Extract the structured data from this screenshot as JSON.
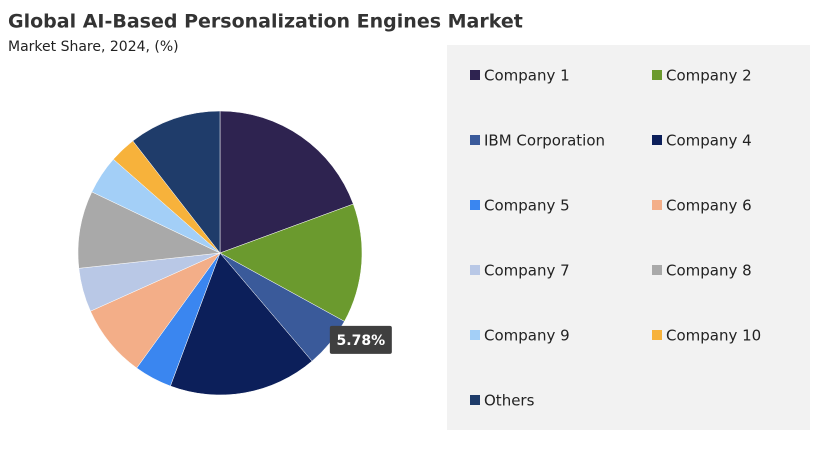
{
  "chart_data": {
    "type": "pie",
    "title": "Global AI-Based Personalization  Engines Market",
    "subtitle": "Market Share, 2024, (%)",
    "categories": [
      "Company 1",
      "Company 2",
      "IBM Corporation",
      "Company 4",
      "Company 5",
      "Company 6",
      "Company 7",
      "Company 8",
      "Company 9",
      "Company 10",
      "Others"
    ],
    "values": [
      19.4,
      13.6,
      5.78,
      16.9,
      4.3,
      8.3,
      5.0,
      8.8,
      4.4,
      3.0,
      10.52
    ],
    "value_labels": [
      null,
      null,
      "5.78%",
      null,
      null,
      null,
      null,
      null,
      null,
      null,
      null
    ],
    "colors": [
      "#2e2350",
      "#6b9a2e",
      "#3a5a9a",
      "#0c1f5a",
      "#3a86f0",
      "#f3ae88",
      "#b9c8e6",
      "#a9a9a9",
      "#a3cff7",
      "#f7b23b",
      "#1f3c6a"
    ]
  }
}
